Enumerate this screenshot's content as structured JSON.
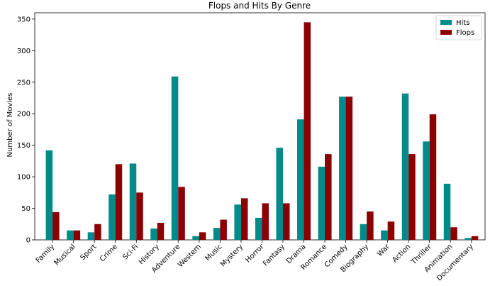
{
  "chart_data": {
    "type": "bar",
    "title": "Flops and Hits By Genre",
    "xlabel": "",
    "ylabel": "Number of Movies",
    "ylim": [
      0,
      360
    ],
    "yticks": [
      0,
      50,
      100,
      150,
      200,
      250,
      300,
      350
    ],
    "grid": false,
    "legend_position": "top-right",
    "categories": [
      "Family",
      "Musical",
      "Sport",
      "Crime",
      "Sci-Fi",
      "History",
      "Adventure",
      "Western",
      "Music",
      "Mystery",
      "Horror",
      "Fantasy",
      "Drama",
      "Romance",
      "Comedy",
      "Biography",
      "War",
      "Action",
      "Thriller",
      "Animation",
      "Documentary"
    ],
    "series": [
      {
        "name": "Hits",
        "color": "#008B8B",
        "values": [
          142,
          15,
          12,
          72,
          121,
          18,
          259,
          6,
          19,
          56,
          35,
          146,
          191,
          116,
          227,
          25,
          15,
          232,
          156,
          89,
          3
        ]
      },
      {
        "name": "Flops",
        "color": "#8B0000",
        "values": [
          44,
          15,
          25,
          120,
          75,
          27,
          84,
          12,
          32,
          66,
          58,
          58,
          345,
          136,
          227,
          45,
          29,
          136,
          199,
          20,
          6
        ]
      }
    ]
  }
}
